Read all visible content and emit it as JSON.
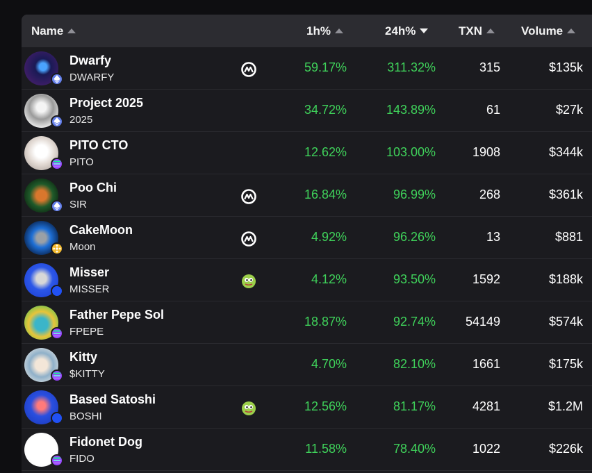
{
  "columns": {
    "name": "Name",
    "h1": "1h%",
    "h24": "24h%",
    "txn": "TXN",
    "volume": "Volume"
  },
  "colors": {
    "positive": "#3fd15a",
    "eth": "#627eea",
    "sol": "#9945ff",
    "bnb": "#f3ba2f",
    "base": "#2151f5"
  },
  "rows": [
    {
      "name": "Dwarfy",
      "symbol": "DWARFY",
      "chain": "eth",
      "badge": "coinmarketcap-icon",
      "h1": "59.17%",
      "h24": "311.32%",
      "txn": "315",
      "volume": "$135k"
    },
    {
      "name": "Project 2025",
      "symbol": "2025",
      "chain": "eth",
      "badge": "",
      "h1": "34.72%",
      "h24": "143.89%",
      "txn": "61",
      "volume": "$27k"
    },
    {
      "name": "PITO CTO",
      "symbol": "PITO",
      "chain": "sol",
      "badge": "",
      "h1": "12.62%",
      "h24": "103.00%",
      "txn": "1908",
      "volume": "$344k"
    },
    {
      "name": "Poo Chi",
      "symbol": "SIR",
      "chain": "eth",
      "badge": "coinmarketcap-icon",
      "h1": "16.84%",
      "h24": "96.99%",
      "txn": "268",
      "volume": "$361k"
    },
    {
      "name": "CakeMoon",
      "symbol": "Moon",
      "chain": "bnb",
      "badge": "coinmarketcap-icon",
      "h1": "4.92%",
      "h24": "96.26%",
      "txn": "13",
      "volume": "$881"
    },
    {
      "name": "Misser",
      "symbol": "MISSER",
      "chain": "base",
      "badge": "pepe-icon",
      "h1": "4.12%",
      "h24": "93.50%",
      "txn": "1592",
      "volume": "$188k"
    },
    {
      "name": "Father Pepe Sol",
      "symbol": "FPEPE",
      "chain": "sol",
      "badge": "",
      "h1": "18.87%",
      "h24": "92.74%",
      "txn": "54149",
      "volume": "$574k"
    },
    {
      "name": "Kitty",
      "symbol": "$KITTY",
      "chain": "sol",
      "badge": "",
      "h1": "4.70%",
      "h24": "82.10%",
      "txn": "1661",
      "volume": "$175k"
    },
    {
      "name": "Based Satoshi",
      "symbol": "BOSHI",
      "chain": "base",
      "badge": "pepe-icon",
      "h1": "12.56%",
      "h24": "81.17%",
      "txn": "4281",
      "volume": "$1.2M"
    },
    {
      "name": "Fidonet Dog",
      "symbol": "FIDO",
      "chain": "sol",
      "badge": "",
      "h1": "11.58%",
      "h24": "78.40%",
      "txn": "1022",
      "volume": "$226k"
    }
  ]
}
